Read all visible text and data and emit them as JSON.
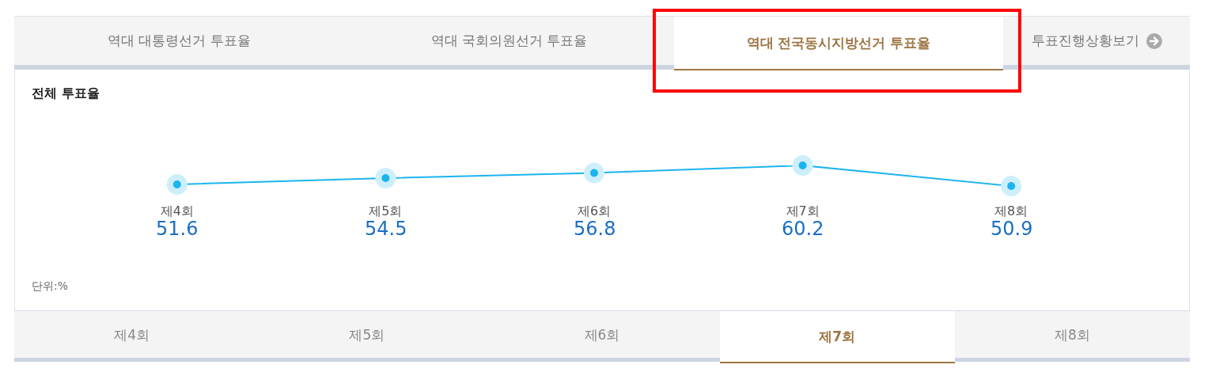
{
  "chart_data": {
    "type": "line",
    "title": "전체 투표율",
    "annotations": [
      "역대 대통령선거 투표율",
      "역대 국회의원선거 투표율",
      "역대 전국동시지방선거 투표율",
      "투표진행상황보기",
      "단위:%"
    ],
    "categories": [
      "제4회",
      "제5회",
      "제6회",
      "제7회",
      "제8회"
    ],
    "series": [
      {
        "color": "#1ab4f0",
        "values": [
          51.6,
          54.5,
          56.8,
          60.2,
          50.9
        ]
      }
    ],
    "data_labels": true,
    "marker": "circle",
    "line_style": "solid"
  }
}
